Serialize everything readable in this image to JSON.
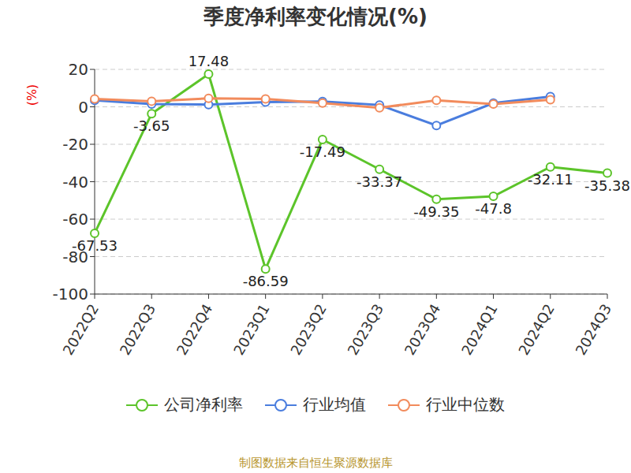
{
  "chart_data": {
    "type": "line",
    "title": "季度净利率变化情况(%)",
    "y_label": "(%)",
    "source": "制图数据来自恒生聚源数据库",
    "categories": [
      "2022Q2",
      "2022Q3",
      "2022Q4",
      "2023Q1",
      "2023Q2",
      "2023Q3",
      "2023Q4",
      "2024Q1",
      "2024Q2",
      "2024Q3"
    ],
    "series": [
      {
        "name": "公司净利率",
        "color": "#5cc42a",
        "marker": "circle",
        "data_labels": true,
        "values": [
          -67.53,
          -3.65,
          17.48,
          -86.59,
          -17.49,
          -33.37,
          -49.35,
          -47.8,
          -32.11,
          -35.38
        ]
      },
      {
        "name": "行业均值",
        "color": "#4a7dde",
        "marker": "circle",
        "values": [
          3.5,
          1.5,
          1.2,
          2.5,
          2.8,
          1.0,
          -10,
          2.0,
          5.5,
          null
        ]
      },
      {
        "name": "行业中位数",
        "color": "#f28b5c",
        "marker": "circle",
        "values": [
          4.2,
          3.0,
          4.5,
          4.2,
          2.0,
          -0.5,
          3.5,
          1.5,
          3.8,
          null
        ]
      }
    ],
    "ylim": [
      -100,
      20
    ],
    "yticks": [
      -100,
      -80,
      -60,
      -40,
      -20,
      0,
      20
    ],
    "grid": true,
    "legend": "bottom"
  }
}
